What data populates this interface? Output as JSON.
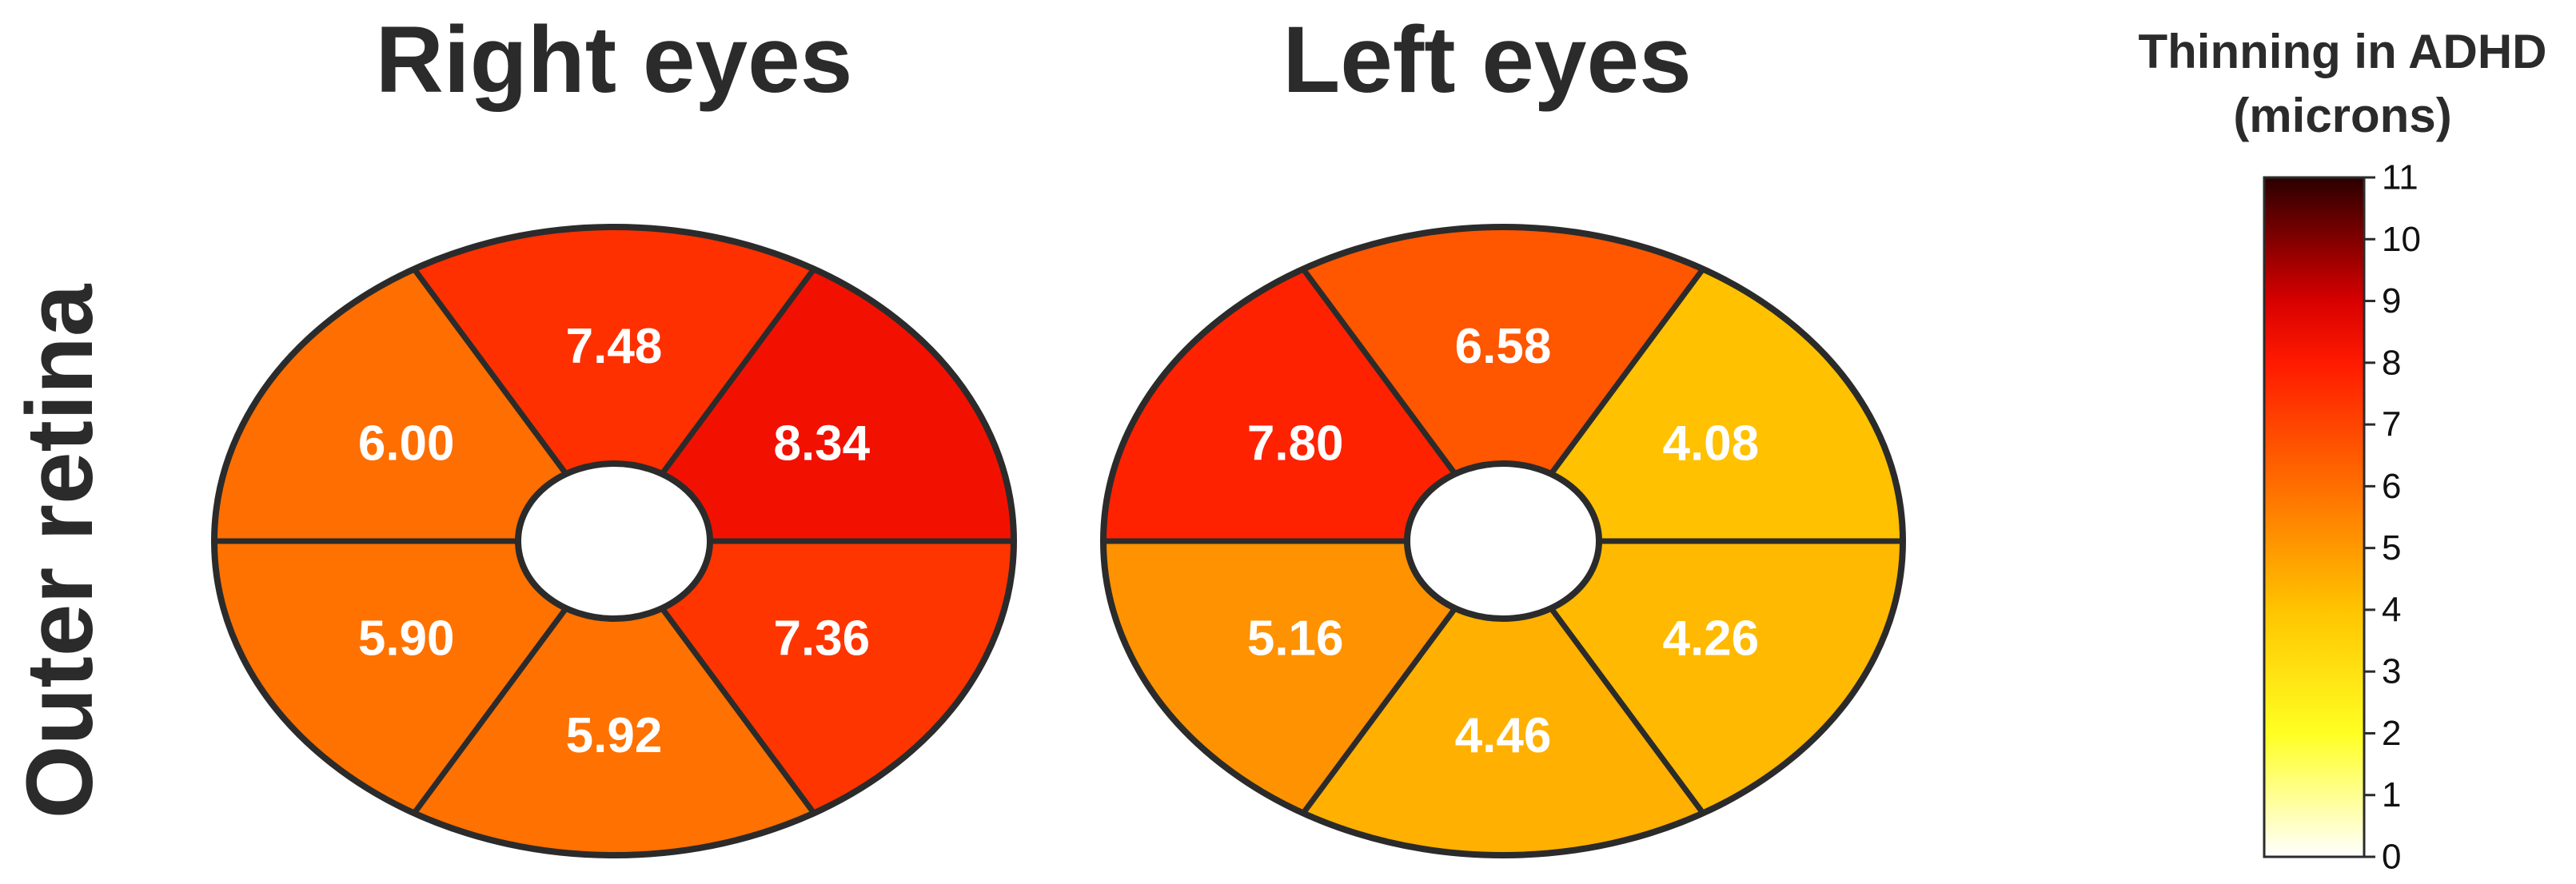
{
  "chart_data": {
    "type": "heatmap",
    "row_label": "Outer retina",
    "panels": [
      {
        "title": "Right eyes",
        "sectors": [
          {
            "position": "superior",
            "value": 7.48,
            "label": "7.48"
          },
          {
            "position": "upper-right",
            "value": 8.34,
            "label": "8.34"
          },
          {
            "position": "lower-right",
            "value": 7.36,
            "label": "7.36"
          },
          {
            "position": "inferior",
            "value": 5.92,
            "label": "5.92"
          },
          {
            "position": "lower-left",
            "value": 5.9,
            "label": "5.90"
          },
          {
            "position": "upper-left",
            "value": 6.0,
            "label": "6.00"
          }
        ]
      },
      {
        "title": "Left eyes",
        "sectors": [
          {
            "position": "superior",
            "value": 6.58,
            "label": "6.58"
          },
          {
            "position": "upper-right",
            "value": 4.08,
            "label": "4.08"
          },
          {
            "position": "lower-right",
            "value": 4.26,
            "label": "4.26"
          },
          {
            "position": "inferior",
            "value": 4.46,
            "label": "4.46"
          },
          {
            "position": "lower-left",
            "value": 5.16,
            "label": "5.16"
          },
          {
            "position": "upper-left",
            "value": 7.8,
            "label": "7.80"
          }
        ]
      }
    ],
    "colorbar": {
      "title_line1": "Thinning in ADHD",
      "title_line2": "(microns)",
      "range": [
        0,
        11
      ],
      "ticks": [
        "0",
        "1",
        "2",
        "3",
        "4",
        "5",
        "6",
        "7",
        "8",
        "9",
        "10",
        "11"
      ],
      "colors": [
        {
          "value": 0,
          "color": "#ffffff"
        },
        {
          "value": 2,
          "color": "#ffff22"
        },
        {
          "value": 4,
          "color": "#ffc400"
        },
        {
          "value": 6,
          "color": "#ff6e00"
        },
        {
          "value": 8,
          "color": "#ff1a00"
        },
        {
          "value": 9,
          "color": "#d80000"
        },
        {
          "value": 11,
          "color": "#2a0000"
        }
      ]
    }
  }
}
